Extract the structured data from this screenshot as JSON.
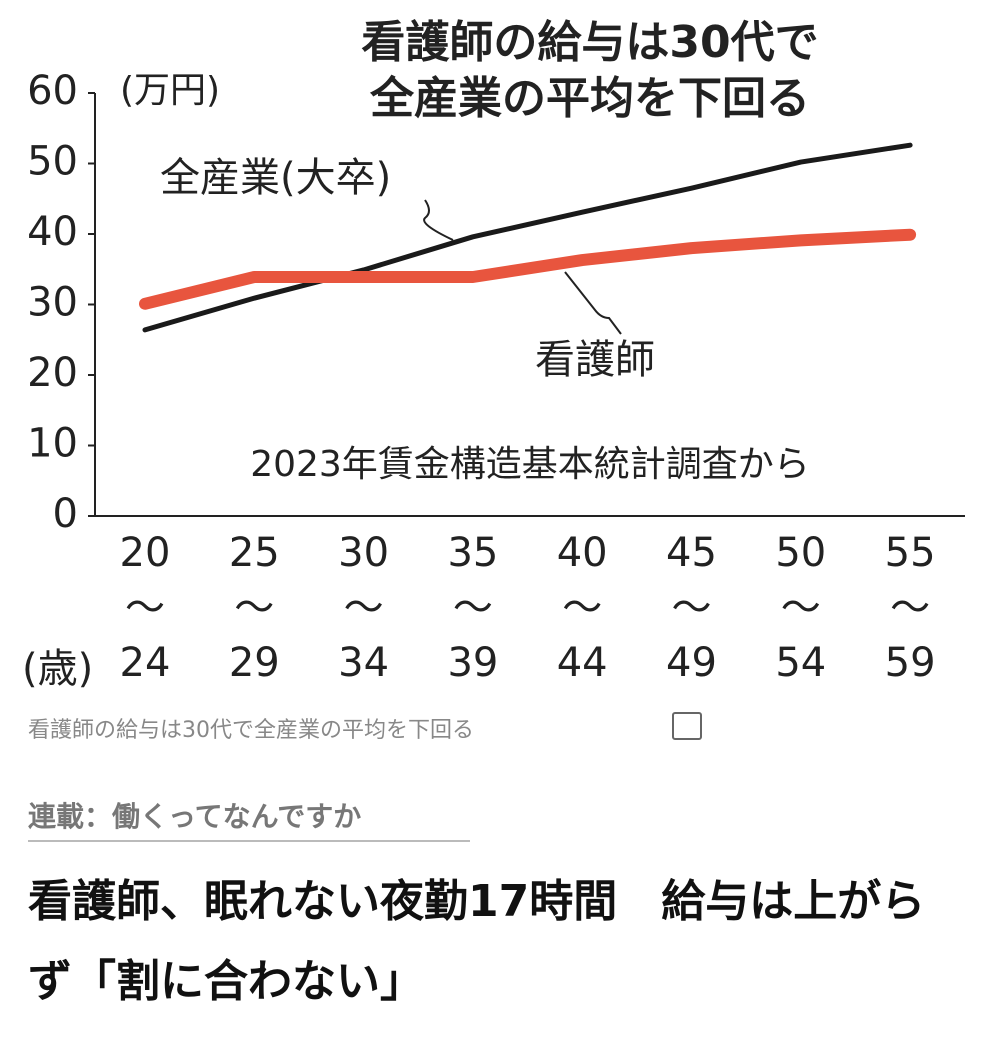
{
  "chart_data": {
    "type": "line",
    "title": "看護師の給与は30代で\n全産業の平均を下回る",
    "y_unit": "(万円)",
    "x_unit": "(歳)",
    "source": "2023年賃金構造基本統計調査から",
    "categories": [
      "20\n〜\n24",
      "25\n〜\n29",
      "30\n〜\n34",
      "35\n〜\n39",
      "40\n〜\n44",
      "45\n〜\n49",
      "50\n〜\n54",
      "55\n〜\n59"
    ],
    "series": [
      {
        "name": "全産業(大卒)",
        "color": "#1a1a1a",
        "values": [
          26.4,
          30.9,
          34.9,
          39.6,
          43.1,
          46.5,
          50.2,
          52.6
        ]
      },
      {
        "name": "看護師",
        "color": "#e8553e",
        "values": [
          30.1,
          33.9,
          33.9,
          33.9,
          36.3,
          38.0,
          39.1,
          39.9
        ]
      }
    ],
    "ylim": [
      0,
      60
    ],
    "yticks": [
      0,
      10,
      20,
      30,
      40,
      50,
      60
    ]
  },
  "caption": "看護師の給与は30代で全産業の平均を下回る",
  "series_label": "連載：働くってなんですか",
  "headline": "看護師、眠れない夜勤17時間　給与は上がらず「割に合わない」"
}
